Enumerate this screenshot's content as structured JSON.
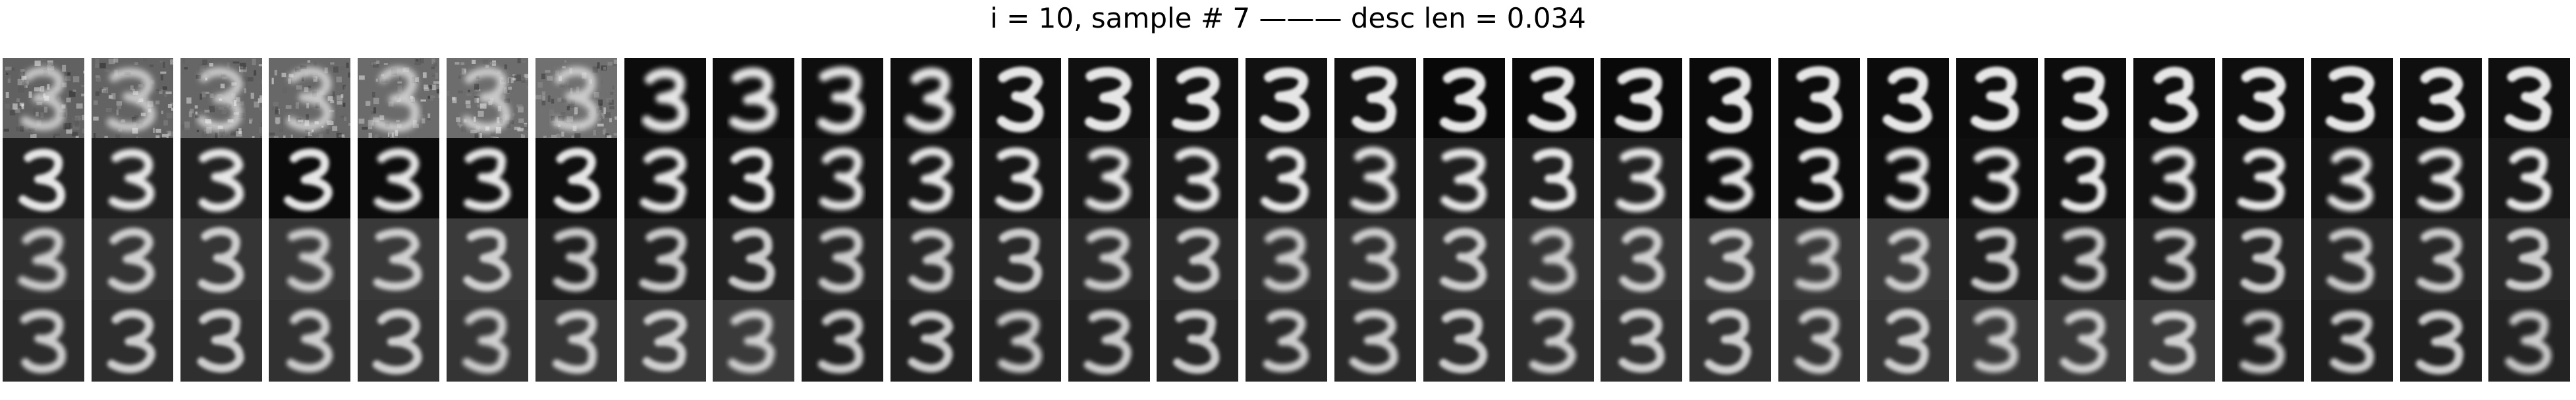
{
  "figure": {
    "title": "i = 10, sample # 7 ——— desc len = 0.034"
  },
  "grid": {
    "rows": 4,
    "columns": 29,
    "tile_depicts": "digit-3",
    "first_row_noisy_tiles": 7
  },
  "colors": {
    "page_background": "#ffffff",
    "title_text": "#000000",
    "digit_stroke": "#f2f2f2"
  }
}
